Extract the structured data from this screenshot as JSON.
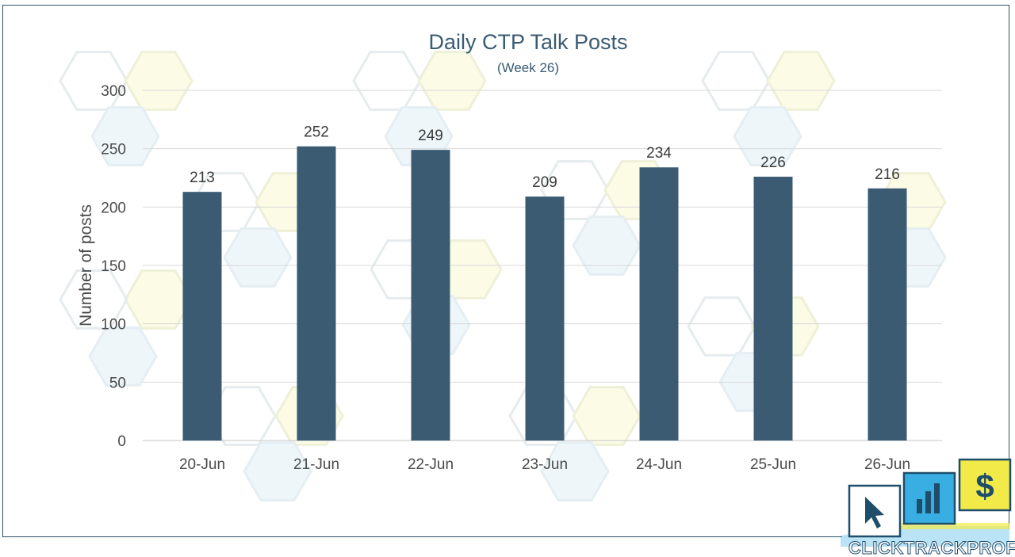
{
  "chart_data": {
    "type": "bar",
    "title": "Daily CTP Talk Posts",
    "subtitle": "(Week 26)",
    "xlabel": "",
    "ylabel": "Number of posts",
    "categories": [
      "20-Jun",
      "21-Jun",
      "22-Jun",
      "23-Jun",
      "24-Jun",
      "25-Jun",
      "26-Jun"
    ],
    "values": [
      213,
      252,
      249,
      209,
      234,
      226,
      216
    ],
    "ylim": [
      0,
      300
    ],
    "yticks": [
      0,
      50,
      100,
      150,
      200,
      250,
      300
    ],
    "grid": true,
    "legend": "none",
    "data_labels": true,
    "bar_color": "#3b5b73"
  },
  "logo": {
    "text_click": "CLICK",
    "text_track": "TRACK",
    "text_profit": "PROFIT",
    "icons": [
      "cursor-icon",
      "bar-chart-icon",
      "dollar-icon"
    ],
    "colors": {
      "navy": "#1f4e6b",
      "blue": "#39aee3",
      "yellow": "#f2ea48"
    }
  }
}
